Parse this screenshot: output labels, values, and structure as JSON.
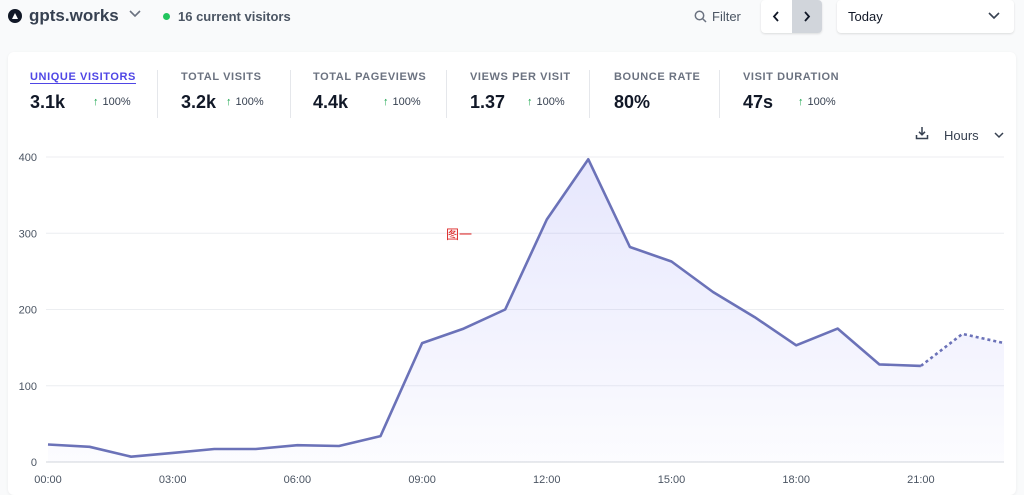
{
  "header": {
    "site_name": "gpts.works",
    "current_visitors": "16 current visitors",
    "filter_label": "Filter",
    "period": "Today"
  },
  "metrics": [
    {
      "title": "UNIQUE VISITORS",
      "value": "3.1k",
      "change": "100%",
      "active": true
    },
    {
      "title": "TOTAL VISITS",
      "value": "3.2k",
      "change": "100%",
      "active": false
    },
    {
      "title": "TOTAL PAGEVIEWS",
      "value": "4.4k",
      "change": "100%",
      "active": false
    },
    {
      "title": "VIEWS PER VISIT",
      "value": "1.37",
      "change": "100%",
      "active": false
    },
    {
      "title": "BOUNCE RATE",
      "value": "80%",
      "change": "",
      "active": false
    },
    {
      "title": "VISIT DURATION",
      "value": "47s",
      "change": "100%",
      "active": false
    }
  ],
  "interval_label": "Hours",
  "annotation": "图一",
  "colors": {
    "line": "#6b72b8",
    "accent": "#4f46e5",
    "positive": "#16a34a",
    "live": "#22c55e"
  },
  "chart_data": {
    "type": "area",
    "x": [
      "00:00",
      "01:00",
      "02:00",
      "03:00",
      "04:00",
      "05:00",
      "06:00",
      "07:00",
      "08:00",
      "09:00",
      "10:00",
      "11:00",
      "12:00",
      "13:00",
      "14:00",
      "15:00",
      "16:00",
      "17:00",
      "18:00",
      "19:00",
      "20:00",
      "21:00",
      "22:00",
      "23:00"
    ],
    "xticks": [
      "00:00",
      "03:00",
      "06:00",
      "09:00",
      "12:00",
      "15:00",
      "18:00",
      "21:00"
    ],
    "series": [
      {
        "values": [
          23,
          20,
          7,
          12,
          17,
          17,
          22,
          21,
          34,
          156,
          175,
          200,
          318,
          397,
          282,
          263,
          223,
          190,
          153,
          175,
          128,
          126,
          168,
          156
        ]
      }
    ],
    "ylim": [
      0,
      400
    ],
    "yticks": [
      0,
      100,
      200,
      300,
      400
    ],
    "incomplete_from_index": 22,
    "grid": true
  }
}
